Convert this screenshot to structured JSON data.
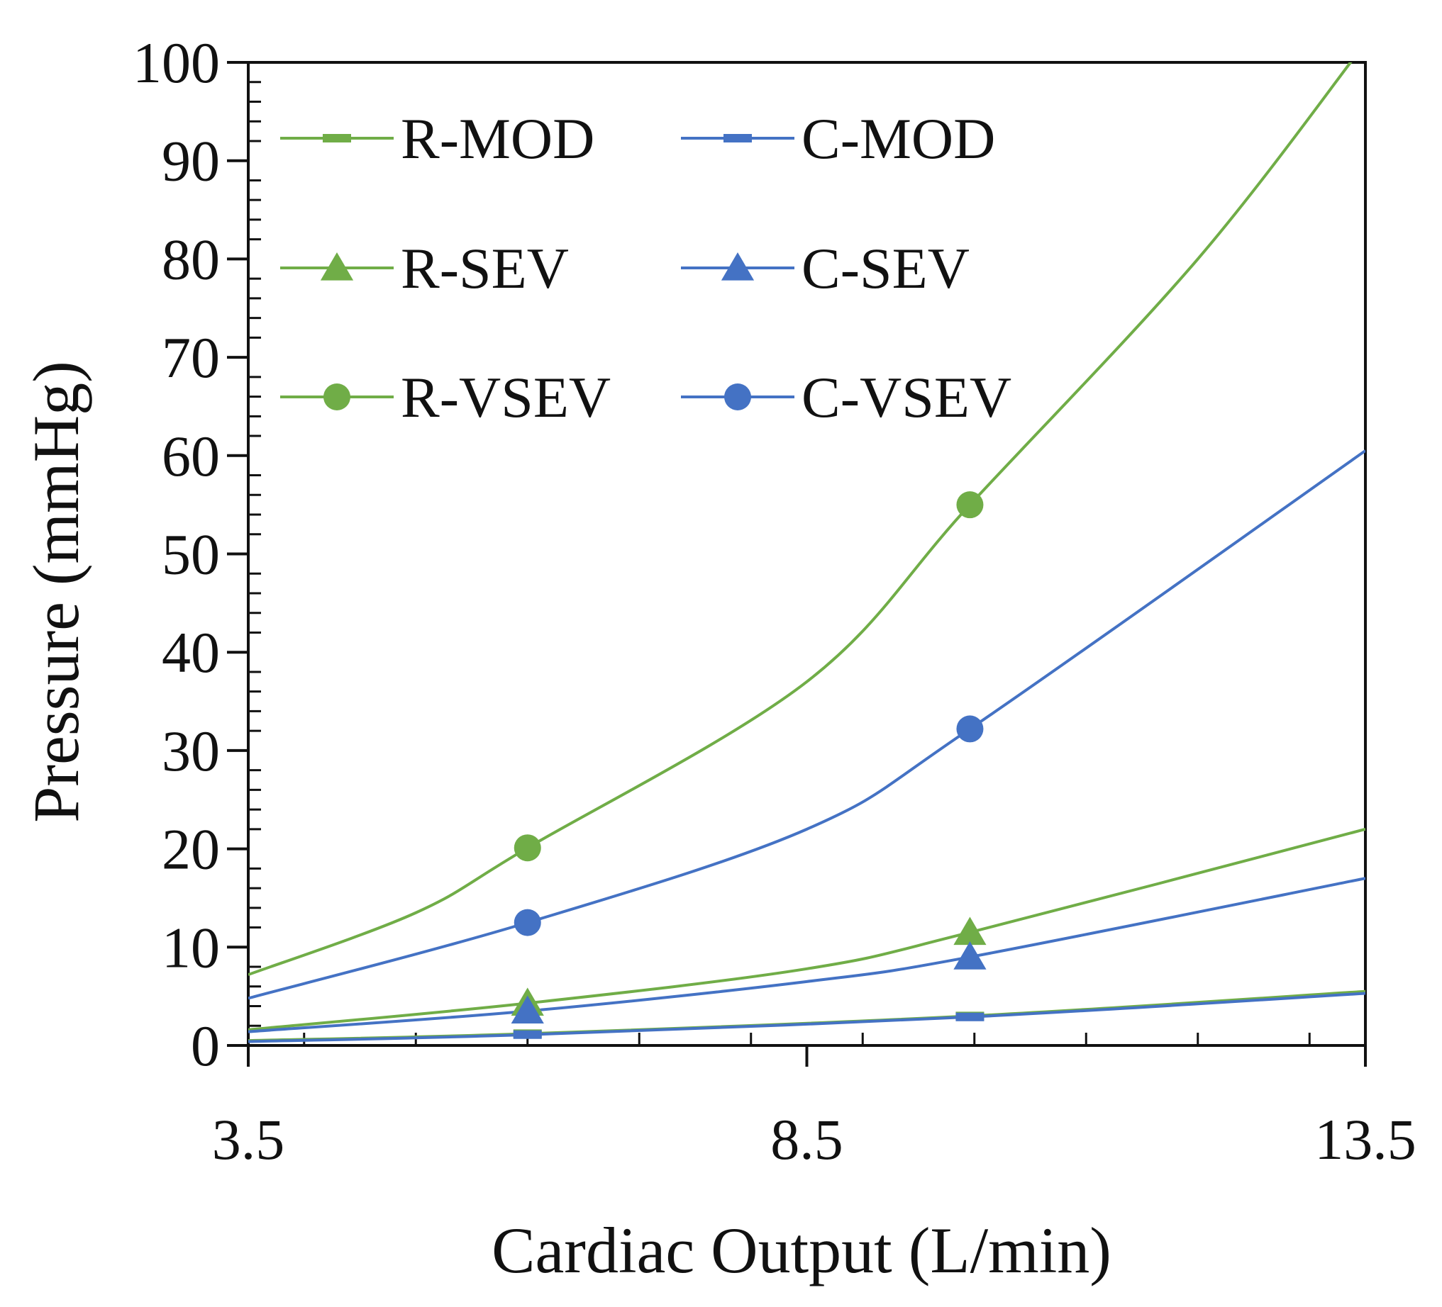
{
  "chart_data": {
    "type": "line",
    "title": "",
    "xlabel": "Cardiac Output (L/min)",
    "ylabel": "Pressure (mmHg)",
    "xlim": [
      3.5,
      13.5
    ],
    "ylim": [
      0,
      100
    ],
    "x_ticks": [
      3.5,
      8.5,
      13.5
    ],
    "x_tick_labels": [
      "3.5",
      "8.5",
      "13.5"
    ],
    "y_ticks": [
      0,
      10,
      20,
      30,
      40,
      50,
      60,
      70,
      80,
      90,
      100
    ],
    "y_tick_labels": [
      "0",
      "10",
      "20",
      "30",
      "40",
      "50",
      "60",
      "70",
      "80",
      "90",
      "100"
    ],
    "grid": false,
    "legend": "top-left",
    "series": [
      {
        "name": "R-MOD",
        "color": "#70AD47",
        "marker": "dash",
        "points": [
          [
            3.5,
            0.5
          ],
          [
            6.0,
            1.2
          ],
          [
            9.96,
            3.0
          ],
          [
            13.5,
            5.5
          ]
        ],
        "markers_x": [
          6.0,
          9.96
        ]
      },
      {
        "name": "R-SEV",
        "color": "#70AD47",
        "marker": "triangle",
        "points": [
          [
            3.5,
            1.6
          ],
          [
            6.0,
            4.3
          ],
          [
            8.5,
            7.8
          ],
          [
            9.96,
            11.5
          ],
          [
            13.5,
            22.0
          ]
        ],
        "markers_x": [
          6.0,
          9.96
        ]
      },
      {
        "name": "R-VSEV",
        "color": "#70AD47",
        "marker": "circle",
        "points": [
          [
            3.5,
            7.2
          ],
          [
            5.0,
            13.5
          ],
          [
            6.0,
            20.1
          ],
          [
            8.5,
            37.0
          ],
          [
            9.96,
            55.0
          ],
          [
            12.0,
            80.0
          ],
          [
            13.5,
            102.0
          ]
        ],
        "markers_x": [
          6.0,
          9.96
        ]
      },
      {
        "name": "C-MOD",
        "color": "#4472C4",
        "marker": "dash",
        "points": [
          [
            3.5,
            0.4
          ],
          [
            6.0,
            1.1
          ],
          [
            9.96,
            2.9
          ],
          [
            13.5,
            5.3
          ]
        ],
        "markers_x": [
          6.0,
          9.96
        ]
      },
      {
        "name": "C-SEV",
        "color": "#4472C4",
        "marker": "triangle",
        "points": [
          [
            3.5,
            1.4
          ],
          [
            6.0,
            3.5
          ],
          [
            8.5,
            6.5
          ],
          [
            9.96,
            9.0
          ],
          [
            13.5,
            17.0
          ]
        ],
        "markers_x": [
          6.0,
          9.96
        ]
      },
      {
        "name": "C-VSEV",
        "color": "#4472C4",
        "marker": "circle",
        "points": [
          [
            3.5,
            4.8
          ],
          [
            6.0,
            12.5
          ],
          [
            8.5,
            22.0
          ],
          [
            9.96,
            32.2
          ],
          [
            13.5,
            60.5
          ]
        ],
        "markers_x": [
          6.0,
          9.96
        ]
      }
    ]
  }
}
